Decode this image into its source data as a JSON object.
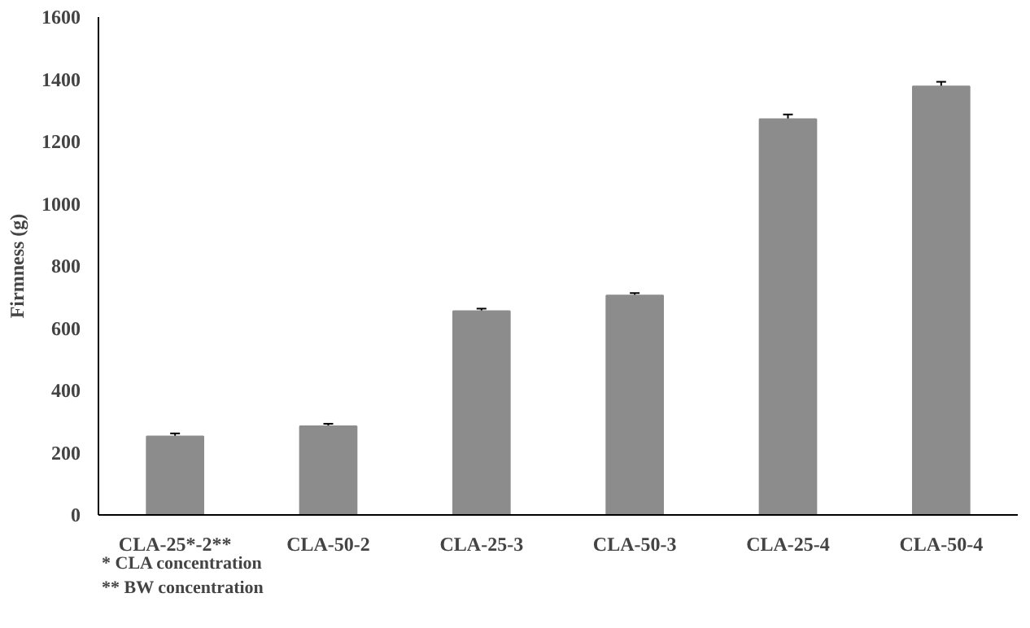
{
  "chart_data": {
    "type": "bar",
    "ylabel": "Firmness (g)",
    "categories": [
      "CLA-25*-2**",
      "CLA-50-2",
      "CLA-25-3",
      "CLA-50-3",
      "CLA-25-4",
      "CLA-50-4"
    ],
    "values": [
      252,
      285,
      655,
      705,
      1272,
      1377
    ],
    "errors": [
      10,
      8,
      8,
      8,
      15,
      15
    ],
    "color": "#8c8c8c",
    "ylim": [
      0,
      1600
    ],
    "yticks": [
      0,
      200,
      400,
      600,
      800,
      1000,
      1200,
      1400,
      1600
    ],
    "grid": false,
    "annotations": [
      "* CLA concentration",
      "** BW concentration"
    ]
  }
}
